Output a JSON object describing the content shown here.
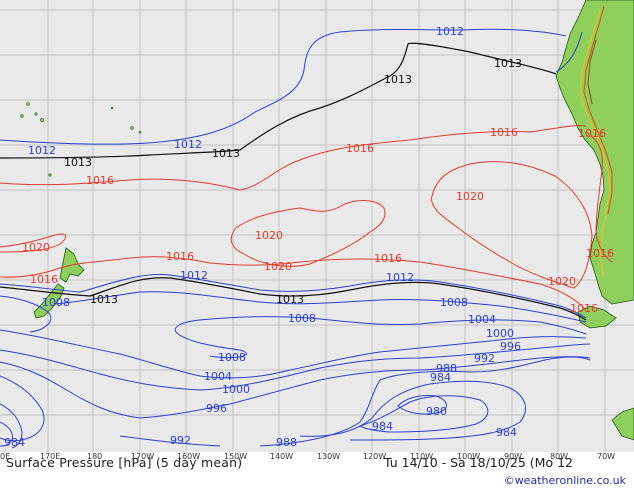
{
  "caption": "Surface Pressure [hPa] (5 day mean)",
  "time_span": "Tu 14/10 - Sa 18/10/25 (Mo 12",
  "credit": "©weatheronline.co.uk",
  "colors": {
    "ocean": "#e9e9e9",
    "land": "#8fcf5c",
    "high_isobar": "#e23b2e",
    "low_isobar": "#2b3fd0",
    "mean_isobar": "#111111",
    "grid": "#c2c2c2"
  },
  "longitude_ticks": [
    "0E",
    "170E",
    "180",
    "170W",
    "160W",
    "150W",
    "140W",
    "130W",
    "120W",
    "110W",
    "100W",
    "90W",
    "80W",
    "70W"
  ],
  "isobar_labels": {
    "i1012_top": "1012",
    "i1013_top": "1013",
    "i1013_ne": "1013",
    "i1012_w": "1012",
    "i1013_w": "1013",
    "i1012_mid": "1012",
    "i1013_mid": "1013",
    "i1016_nw": "1016",
    "i1016_mid": "1016",
    "i1016_ne": "1016",
    "i1016_coast": "1016",
    "i1020_a": "1020",
    "i1020_b": "1020",
    "i1020_ne": "1020",
    "i1020_w": "1020",
    "i1016_w": "1016",
    "i1016_s": "1016",
    "i1020_se": "1020",
    "i1012_s": "1012",
    "i1013_nz": "1013",
    "i1013_s": "1013",
    "i1016_se": "1016",
    "i1008_nz": "1008",
    "i1008_a": "1008",
    "i1008_b": "1008",
    "i1008_c": "1008",
    "i1004_a": "1004",
    "i1004_b": "1004",
    "i1000_a": "1000",
    "i1000_b": "1000",
    "i996_a": "996",
    "i996_b": "996",
    "i992_a": "992",
    "i992_b": "992",
    "i988_a": "988",
    "i988_b": "988",
    "i984_a": "984",
    "i984_b": "984",
    "i984_c": "984",
    "i984_d": "984",
    "i980": "980"
  }
}
